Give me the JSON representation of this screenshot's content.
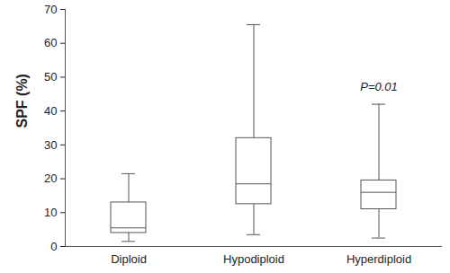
{
  "chart_data": {
    "type": "box",
    "y_label": "SPF (%)",
    "categories": [
      "Diploid",
      "Hypodiploid",
      "Hyperdiploid"
    ],
    "min": [
      1.5,
      3.5,
      2.5
    ],
    "q1": [
      4,
      12.5,
      11
    ],
    "median": [
      5.5,
      18.5,
      16
    ],
    "q3": [
      13,
      32,
      19.5
    ],
    "max": [
      21.5,
      65.5,
      42
    ],
    "color": "#ffffff",
    "ylim": [
      0,
      70
    ],
    "yticks": [
      0,
      10,
      20,
      30,
      40,
      50,
      60,
      70
    ],
    "annotations": [
      {
        "category": "Hyperdiploid",
        "y": 47,
        "text": "P=0.01"
      }
    ]
  }
}
